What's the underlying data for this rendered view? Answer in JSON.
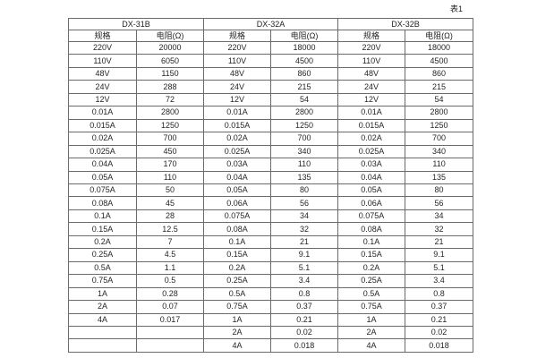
{
  "page": {
    "caption": "表1"
  },
  "table": {
    "col_headers": [
      "规格",
      "电阻(Ω)"
    ],
    "groups": [
      {
        "name": "DX-31B",
        "rows": [
          [
            "220V",
            "20000"
          ],
          [
            "110V",
            "6050"
          ],
          [
            "48V",
            "1150"
          ],
          [
            "24V",
            "288"
          ],
          [
            "12V",
            "72"
          ],
          [
            "0.01A",
            "2800"
          ],
          [
            "0.015A",
            "1250"
          ],
          [
            "0.02A",
            "700"
          ],
          [
            "0.025A",
            "450"
          ],
          [
            "0.04A",
            "170"
          ],
          [
            "0.05A",
            "110"
          ],
          [
            "0.075A",
            "50"
          ],
          [
            "0.08A",
            "45"
          ],
          [
            "0.1A",
            "28"
          ],
          [
            "0.15A",
            "12.5"
          ],
          [
            "0.2A",
            "7"
          ],
          [
            "0.25A",
            "4.5"
          ],
          [
            "0.5A",
            "1.1"
          ],
          [
            "0.75A",
            "0.5"
          ],
          [
            "1A",
            "0.28"
          ],
          [
            "2A",
            "0.07"
          ],
          [
            "4A",
            "0.017"
          ],
          [
            "",
            ""
          ],
          [
            "",
            ""
          ]
        ]
      },
      {
        "name": "DX-32A",
        "rows": [
          [
            "220V",
            "18000"
          ],
          [
            "110V",
            "4500"
          ],
          [
            "48V",
            "860"
          ],
          [
            "24V",
            "215"
          ],
          [
            "12V",
            "54"
          ],
          [
            "0.01A",
            "2800"
          ],
          [
            "0.015A",
            "1250"
          ],
          [
            "0.02A",
            "700"
          ],
          [
            "0.025A",
            "340"
          ],
          [
            "0.03A",
            "110"
          ],
          [
            "0.04A",
            "135"
          ],
          [
            "0.05A",
            "80"
          ],
          [
            "0.06A",
            "56"
          ],
          [
            "0.075A",
            "34"
          ],
          [
            "0.08A",
            "32"
          ],
          [
            "0.1A",
            "21"
          ],
          [
            "0.15A",
            "9.1"
          ],
          [
            "0.2A",
            "5.1"
          ],
          [
            "0.25A",
            "3.4"
          ],
          [
            "0.5A",
            "0.8"
          ],
          [
            "0.75A",
            "0.37"
          ],
          [
            "1A",
            "0.21"
          ],
          [
            "2A",
            "0.02"
          ],
          [
            "4A",
            "0.018"
          ]
        ]
      },
      {
        "name": "DX-32B",
        "rows": [
          [
            "220V",
            "18000"
          ],
          [
            "110V",
            "4500"
          ],
          [
            "48V",
            "860"
          ],
          [
            "24V",
            "215"
          ],
          [
            "12V",
            "54"
          ],
          [
            "0.01A",
            "2800"
          ],
          [
            "0.015A",
            "1250"
          ],
          [
            "0.02A",
            "700"
          ],
          [
            "0.025A",
            "340"
          ],
          [
            "0.03A",
            "110"
          ],
          [
            "0.04A",
            "135"
          ],
          [
            "0.05A",
            "80"
          ],
          [
            "0.06A",
            "56"
          ],
          [
            "0.075A",
            "34"
          ],
          [
            "0.08A",
            "32"
          ],
          [
            "0.1A",
            "21"
          ],
          [
            "0.15A",
            "9.1"
          ],
          [
            "0.2A",
            "5.1"
          ],
          [
            "0.25A",
            "3.4"
          ],
          [
            "0.5A",
            "0.8"
          ],
          [
            "0.75A",
            "0.37"
          ],
          [
            "1A",
            "0.21"
          ],
          [
            "2A",
            "0.02"
          ],
          [
            "4A",
            "0.018"
          ]
        ]
      }
    ]
  }
}
